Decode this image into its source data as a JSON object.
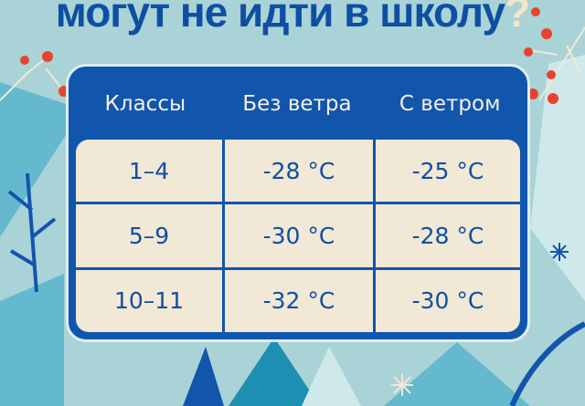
{
  "title": {
    "text": "могут не идти в школу",
    "mark": "?"
  },
  "table": {
    "headers": [
      "Классы",
      "Без ветра",
      "С ветром"
    ],
    "rows": [
      [
        "1–4",
        "-28 °C",
        "-25 °C"
      ],
      [
        "5–9",
        "-30 °C",
        "-28 °C"
      ],
      [
        "10–11",
        "-32 °C",
        "-30 °C"
      ]
    ]
  },
  "colors": {
    "background": "#a9d3d6",
    "table": "#1255ad",
    "cell": "#f1e8d6",
    "text": "#0f4fa3",
    "berry": "#e8432c"
  }
}
